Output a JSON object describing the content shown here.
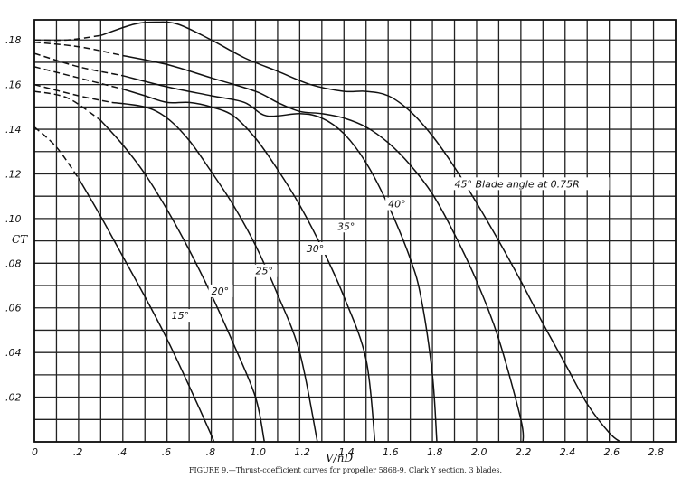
{
  "chart_data": {
    "type": "line",
    "title": "Thrust-coefficient curves for propeller 5868-9, Clark Y section, 3 blades.",
    "caption": "FIGURE 9.—Thrust-coefficient curves for propeller 5868-9, Clark Y section, 3 blades.",
    "xlabel": "V/nD",
    "ylabel": "CT",
    "xlim": [
      0,
      2.9
    ],
    "ylim": [
      0,
      0.189
    ],
    "grid": true,
    "x_ticks": [
      0,
      0.2,
      0.4,
      0.6,
      0.8,
      1.0,
      1.2,
      1.4,
      1.6,
      1.8,
      2.0,
      2.2,
      2.4,
      2.6,
      2.8
    ],
    "x_tick_labels": [
      "0",
      ".2",
      ".4",
      ".6",
      ".8",
      "1.0",
      "1.2",
      "1.4",
      "1.6",
      "1.8",
      "2.0",
      "2.2",
      "2.4",
      "2.6",
      "2.8"
    ],
    "y_ticks": [
      0.02,
      0.04,
      0.06,
      0.08,
      0.1,
      0.12,
      0.14,
      0.16,
      0.18
    ],
    "y_tick_labels": [
      ".02",
      ".04",
      ".06",
      ".08",
      ".10",
      ".12",
      ".14",
      ".16",
      ".18"
    ],
    "series": [
      {
        "name": "15°",
        "label_pos": [
          0.62,
          0.055
        ],
        "dashed": [
          [
            0,
            0.141
          ],
          [
            0.1,
            0.132
          ],
          [
            0.2,
            0.118
          ]
        ],
        "solid": [
          [
            0.2,
            0.118
          ],
          [
            0.3,
            0.101
          ],
          [
            0.4,
            0.083
          ],
          [
            0.5,
            0.065
          ],
          [
            0.6,
            0.046
          ],
          [
            0.7,
            0.025
          ],
          [
            0.8,
            0.003
          ],
          [
            0.81,
            0
          ]
        ]
      },
      {
        "name": "20°",
        "label_pos": [
          0.8,
          0.066
        ],
        "dashed": [
          [
            0,
            0.157
          ],
          [
            0.15,
            0.154
          ],
          [
            0.3,
            0.144
          ]
        ],
        "solid": [
          [
            0.3,
            0.144
          ],
          [
            0.4,
            0.133
          ],
          [
            0.5,
            0.12
          ],
          [
            0.6,
            0.104
          ],
          [
            0.7,
            0.086
          ],
          [
            0.8,
            0.066
          ],
          [
            0.9,
            0.044
          ],
          [
            1.0,
            0.02
          ],
          [
            1.04,
            0
          ]
        ]
      },
      {
        "name": "25°",
        "label_pos": [
          1.0,
          0.075
        ],
        "dashed": [
          [
            0,
            0.16
          ],
          [
            0.2,
            0.155
          ],
          [
            0.35,
            0.152
          ]
        ],
        "solid": [
          [
            0.35,
            0.152
          ],
          [
            0.5,
            0.15
          ],
          [
            0.6,
            0.145
          ],
          [
            0.7,
            0.135
          ],
          [
            0.8,
            0.121
          ],
          [
            0.9,
            0.106
          ],
          [
            1.0,
            0.088
          ],
          [
            1.1,
            0.066
          ],
          [
            1.2,
            0.04
          ],
          [
            1.28,
            0
          ]
        ]
      },
      {
        "name": "30°",
        "label_pos": [
          1.23,
          0.085
        ],
        "dashed": [
          [
            0,
            0.168
          ],
          [
            0.2,
            0.163
          ],
          [
            0.4,
            0.158
          ]
        ],
        "solid": [
          [
            0.4,
            0.158
          ],
          [
            0.5,
            0.155
          ],
          [
            0.6,
            0.152
          ],
          [
            0.7,
            0.152
          ],
          [
            0.8,
            0.15
          ],
          [
            0.9,
            0.146
          ],
          [
            1.0,
            0.136
          ],
          [
            1.1,
            0.122
          ],
          [
            1.2,
            0.106
          ],
          [
            1.3,
            0.087
          ],
          [
            1.4,
            0.065
          ],
          [
            1.5,
            0.037
          ],
          [
            1.54,
            0
          ]
        ]
      },
      {
        "name": "35°",
        "label_pos": [
          1.37,
          0.095
        ],
        "dashed": [
          [
            0,
            0.174
          ],
          [
            0.2,
            0.168
          ],
          [
            0.4,
            0.164
          ]
        ],
        "solid": [
          [
            0.4,
            0.164
          ],
          [
            0.6,
            0.159
          ],
          [
            0.8,
            0.155
          ],
          [
            0.95,
            0.152
          ],
          [
            1.05,
            0.146
          ],
          [
            1.2,
            0.147
          ],
          [
            1.3,
            0.145
          ],
          [
            1.4,
            0.138
          ],
          [
            1.5,
            0.125
          ],
          [
            1.6,
            0.106
          ],
          [
            1.7,
            0.082
          ],
          [
            1.75,
            0.064
          ],
          [
            1.8,
            0.03
          ],
          [
            1.82,
            0
          ]
        ]
      },
      {
        "name": "40°",
        "label_pos": [
          1.6,
          0.105
        ],
        "dashed": [
          [
            0,
            0.179
          ],
          [
            0.2,
            0.177
          ],
          [
            0.4,
            0.173
          ]
        ],
        "solid": [
          [
            0.4,
            0.173
          ],
          [
            0.6,
            0.169
          ],
          [
            0.8,
            0.163
          ],
          [
            1.0,
            0.157
          ],
          [
            1.1,
            0.152
          ],
          [
            1.2,
            0.148
          ],
          [
            1.3,
            0.147
          ],
          [
            1.4,
            0.145
          ],
          [
            1.5,
            0.141
          ],
          [
            1.6,
            0.134
          ],
          [
            1.7,
            0.124
          ],
          [
            1.8,
            0.111
          ],
          [
            1.9,
            0.093
          ],
          [
            2.0,
            0.072
          ],
          [
            2.1,
            0.046
          ],
          [
            2.2,
            0.01
          ],
          [
            2.21,
            0
          ]
        ]
      },
      {
        "name": "45° Blade angle at 0.75R",
        "label_pos": [
          1.9,
          0.114
        ],
        "dashed": [
          [
            0,
            0.18
          ],
          [
            0.15,
            0.18
          ],
          [
            0.3,
            0.182
          ]
        ],
        "solid": [
          [
            0.3,
            0.182
          ],
          [
            0.45,
            0.187
          ],
          [
            0.55,
            0.188
          ],
          [
            0.65,
            0.187
          ],
          [
            0.8,
            0.18
          ],
          [
            0.95,
            0.172
          ],
          [
            1.1,
            0.166
          ],
          [
            1.25,
            0.16
          ],
          [
            1.4,
            0.157
          ],
          [
            1.5,
            0.157
          ],
          [
            1.6,
            0.155
          ],
          [
            1.7,
            0.148
          ],
          [
            1.8,
            0.137
          ],
          [
            1.9,
            0.123
          ],
          [
            2.0,
            0.107
          ],
          [
            2.1,
            0.09
          ],
          [
            2.2,
            0.072
          ],
          [
            2.3,
            0.053
          ],
          [
            2.4,
            0.035
          ],
          [
            2.5,
            0.017
          ],
          [
            2.6,
            0.004
          ],
          [
            2.65,
            0
          ]
        ]
      }
    ]
  }
}
